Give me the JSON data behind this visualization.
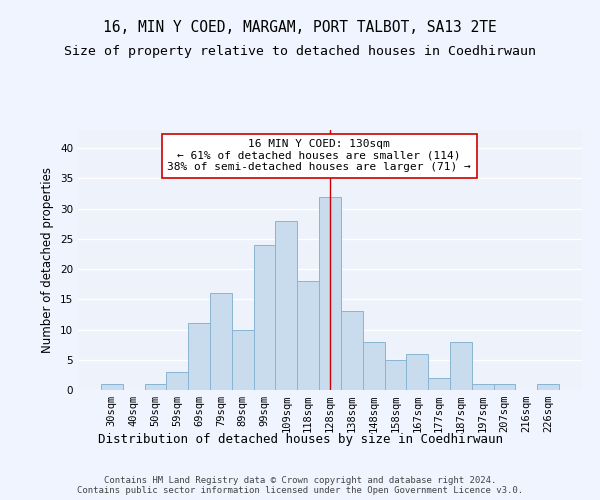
{
  "title": "16, MIN Y COED, MARGAM, PORT TALBOT, SA13 2TE",
  "subtitle": "Size of property relative to detached houses in Coedhirwaun",
  "xlabel": "Distribution of detached houses by size in Coedhirwaun",
  "ylabel": "Number of detached properties",
  "categories": [
    "30sqm",
    "40sqm",
    "50sqm",
    "59sqm",
    "69sqm",
    "79sqm",
    "89sqm",
    "99sqm",
    "109sqm",
    "118sqm",
    "128sqm",
    "138sqm",
    "148sqm",
    "158sqm",
    "167sqm",
    "177sqm",
    "187sqm",
    "197sqm",
    "207sqm",
    "216sqm",
    "226sqm"
  ],
  "values": [
    1,
    0,
    1,
    3,
    11,
    16,
    10,
    24,
    28,
    18,
    32,
    13,
    8,
    5,
    6,
    2,
    8,
    1,
    1,
    0,
    1
  ],
  "bar_color": "#c9dcee",
  "bar_edge_color": "#8ab4d4",
  "background_color": "#eef2fa",
  "grid_color": "#ffffff",
  "annotation_text": "16 MIN Y COED: 130sqm\n← 61% of detached houses are smaller (114)\n38% of semi-detached houses are larger (71) →",
  "vline_index": 10,
  "vline_color": "#cc0000",
  "ylim": [
    0,
    43
  ],
  "yticks": [
    0,
    5,
    10,
    15,
    20,
    25,
    30,
    35,
    40
  ],
  "footer": "Contains HM Land Registry data © Crown copyright and database right 2024.\nContains public sector information licensed under the Open Government Licence v3.0.",
  "title_fontsize": 10.5,
  "subtitle_fontsize": 9.5,
  "xlabel_fontsize": 9,
  "ylabel_fontsize": 8.5,
  "tick_fontsize": 7.5,
  "annotation_fontsize": 8,
  "footer_fontsize": 6.5
}
